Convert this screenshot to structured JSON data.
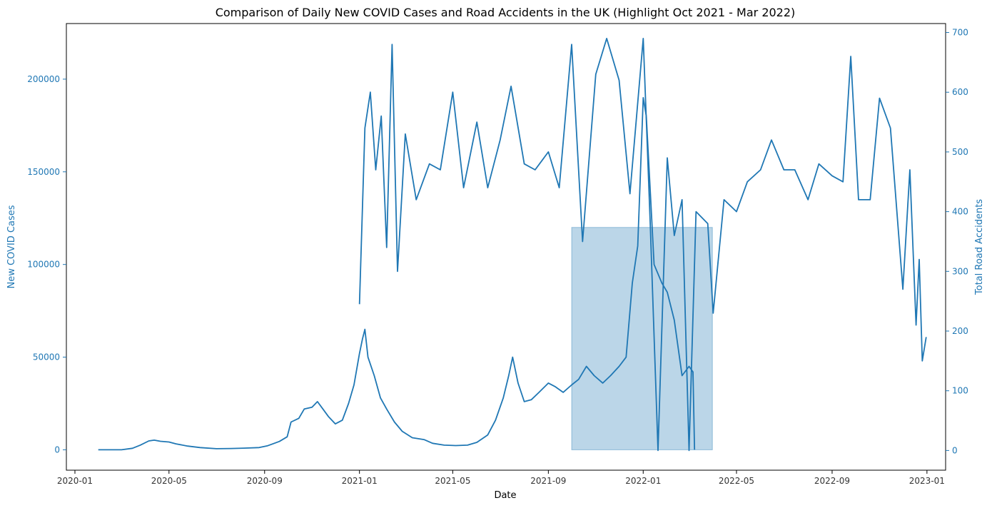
{
  "chart_data": {
    "type": "line",
    "title": "Comparison of Daily New COVID Cases and Road Accidents in the UK (Highlight Oct 2021 - Mar 2022)",
    "xlabel": "Date",
    "ylabel_left": "New COVID Cases",
    "ylabel_right": "Total Road Accidents",
    "x_ticks": [
      "2020-01",
      "2020-05",
      "2020-09",
      "2021-01",
      "2021-05",
      "2021-09",
      "2022-01",
      "2022-05",
      "2022-09",
      "2023-01"
    ],
    "y_left_ticks": [
      0,
      50000,
      100000,
      150000,
      200000
    ],
    "y_right_ticks": [
      0,
      100,
      200,
      300,
      400,
      500,
      600,
      700
    ],
    "xlim": [
      "2019-12-21",
      "2023-01-25"
    ],
    "ylim_left": [
      -11000,
      230000
    ],
    "ylim_right": [
      -33,
      715
    ],
    "highlight_range": [
      "2021-10-01",
      "2022-03-31"
    ],
    "colors": {
      "line": "#1f77b4",
      "axis_label": "#1f77b4",
      "highlight": "#1f77b4"
    },
    "series": [
      {
        "axis": "left",
        "points": [
          [
            "2020-01-31",
            0
          ],
          [
            "2020-02-15",
            0
          ],
          [
            "2020-03-01",
            20
          ],
          [
            "2020-03-15",
            800
          ],
          [
            "2020-03-25",
            2500
          ],
          [
            "2020-04-05",
            4800
          ],
          [
            "2020-04-12",
            5200
          ],
          [
            "2020-04-20",
            4600
          ],
          [
            "2020-05-01",
            4200
          ],
          [
            "2020-05-10",
            3200
          ],
          [
            "2020-05-25",
            2000
          ],
          [
            "2020-06-10",
            1200
          ],
          [
            "2020-07-01",
            600
          ],
          [
            "2020-07-20",
            700
          ],
          [
            "2020-08-05",
            900
          ],
          [
            "2020-08-25",
            1200
          ],
          [
            "2020-09-05",
            2200
          ],
          [
            "2020-09-20",
            4500
          ],
          [
            "2020-09-30",
            7000
          ],
          [
            "2020-10-05",
            15000
          ],
          [
            "2020-10-15",
            17000
          ],
          [
            "2020-10-22",
            22000
          ],
          [
            "2020-11-01",
            23000
          ],
          [
            "2020-11-08",
            26000
          ],
          [
            "2020-11-15",
            22000
          ],
          [
            "2020-11-22",
            18000
          ],
          [
            "2020-12-01",
            14000
          ],
          [
            "2020-12-10",
            16000
          ],
          [
            "2020-12-18",
            25000
          ],
          [
            "2020-12-25",
            35000
          ],
          [
            "2021-01-01",
            52000
          ],
          [
            "2021-01-05",
            60000
          ],
          [
            "2021-01-08",
            65000
          ],
          [
            "2021-01-12",
            50000
          ],
          [
            "2021-01-20",
            40000
          ],
          [
            "2021-01-28",
            28000
          ],
          [
            "2021-02-05",
            22000
          ],
          [
            "2021-02-15",
            15000
          ],
          [
            "2021-02-25",
            10000
          ],
          [
            "2021-03-10",
            6500
          ],
          [
            "2021-03-25",
            5500
          ],
          [
            "2021-04-05",
            3500
          ],
          [
            "2021-04-20",
            2500
          ],
          [
            "2021-05-05",
            2300
          ],
          [
            "2021-05-20",
            2500
          ],
          [
            "2021-06-01",
            4000
          ],
          [
            "2021-06-15",
            8000
          ],
          [
            "2021-06-25",
            16000
          ],
          [
            "2021-07-05",
            28000
          ],
          [
            "2021-07-12",
            40000
          ],
          [
            "2021-07-17",
            50000
          ],
          [
            "2021-07-24",
            36000
          ],
          [
            "2021-08-01",
            26000
          ],
          [
            "2021-08-10",
            27000
          ],
          [
            "2021-08-20",
            31000
          ],
          [
            "2021-09-01",
            36000
          ],
          [
            "2021-09-10",
            34000
          ],
          [
            "2021-09-20",
            31000
          ],
          [
            "2021-10-01",
            35000
          ],
          [
            "2021-10-10",
            38000
          ],
          [
            "2021-10-20",
            45000
          ],
          [
            "2021-10-30",
            40000
          ],
          [
            "2021-11-10",
            36000
          ],
          [
            "2021-11-20",
            40000
          ],
          [
            "2021-12-01",
            45000
          ],
          [
            "2021-12-10",
            50000
          ],
          [
            "2021-12-18",
            90000
          ],
          [
            "2021-12-25",
            110000
          ],
          [
            "2022-01-01",
            190000
          ],
          [
            "2022-01-05",
            180000
          ],
          [
            "2022-01-10",
            140000
          ],
          [
            "2022-01-15",
            100000
          ],
          [
            "2022-01-25",
            90000
          ],
          [
            "2022-02-01",
            85000
          ],
          [
            "2022-02-10",
            70000
          ],
          [
            "2022-02-20",
            40000
          ],
          [
            "2022-03-01",
            45000
          ],
          [
            "2022-03-06",
            42000
          ],
          [
            "2022-03-08",
            0
          ]
        ]
      },
      {
        "axis": "right",
        "points": [
          [
            "2021-01-01",
            245
          ],
          [
            "2021-01-08",
            540
          ],
          [
            "2021-01-15",
            600
          ],
          [
            "2021-01-22",
            470
          ],
          [
            "2021-01-29",
            560
          ],
          [
            "2021-02-05",
            340
          ],
          [
            "2021-02-12",
            680
          ],
          [
            "2021-02-19",
            300
          ],
          [
            "2021-03-01",
            530
          ],
          [
            "2021-03-15",
            420
          ],
          [
            "2021-04-01",
            480
          ],
          [
            "2021-04-15",
            470
          ],
          [
            "2021-05-01",
            600
          ],
          [
            "2021-05-15",
            440
          ],
          [
            "2021-06-01",
            550
          ],
          [
            "2021-06-15",
            440
          ],
          [
            "2021-07-01",
            520
          ],
          [
            "2021-07-15",
            610
          ],
          [
            "2021-08-01",
            480
          ],
          [
            "2021-08-15",
            470
          ],
          [
            "2021-09-01",
            500
          ],
          [
            "2021-09-15",
            440
          ],
          [
            "2021-10-01",
            680
          ],
          [
            "2021-10-15",
            350
          ],
          [
            "2021-11-01",
            630
          ],
          [
            "2021-11-15",
            690
          ],
          [
            "2021-12-01",
            620
          ],
          [
            "2021-12-15",
            430
          ],
          [
            "2022-01-01",
            690
          ],
          [
            "2022-01-10",
            380
          ],
          [
            "2022-01-20",
            0
          ],
          [
            "2022-02-01",
            490
          ],
          [
            "2022-02-10",
            360
          ],
          [
            "2022-02-20",
            420
          ],
          [
            "2022-03-01",
            0
          ],
          [
            "2022-03-10",
            400
          ],
          [
            "2022-03-25",
            380
          ],
          [
            "2022-04-01",
            230
          ],
          [
            "2022-04-15",
            420
          ],
          [
            "2022-05-01",
            400
          ],
          [
            "2022-05-15",
            450
          ],
          [
            "2022-06-01",
            470
          ],
          [
            "2022-06-15",
            520
          ],
          [
            "2022-07-01",
            470
          ],
          [
            "2022-07-15",
            470
          ],
          [
            "2022-08-01",
            420
          ],
          [
            "2022-08-15",
            480
          ],
          [
            "2022-09-01",
            460
          ],
          [
            "2022-09-15",
            450
          ],
          [
            "2022-09-25",
            660
          ],
          [
            "2022-10-05",
            420
          ],
          [
            "2022-10-20",
            420
          ],
          [
            "2022-11-01",
            590
          ],
          [
            "2022-11-15",
            540
          ],
          [
            "2022-12-01",
            270
          ],
          [
            "2022-12-10",
            470
          ],
          [
            "2022-12-18",
            210
          ],
          [
            "2022-12-22",
            320
          ],
          [
            "2022-12-26",
            150
          ],
          [
            "2022-12-31",
            190
          ]
        ]
      }
    ]
  }
}
